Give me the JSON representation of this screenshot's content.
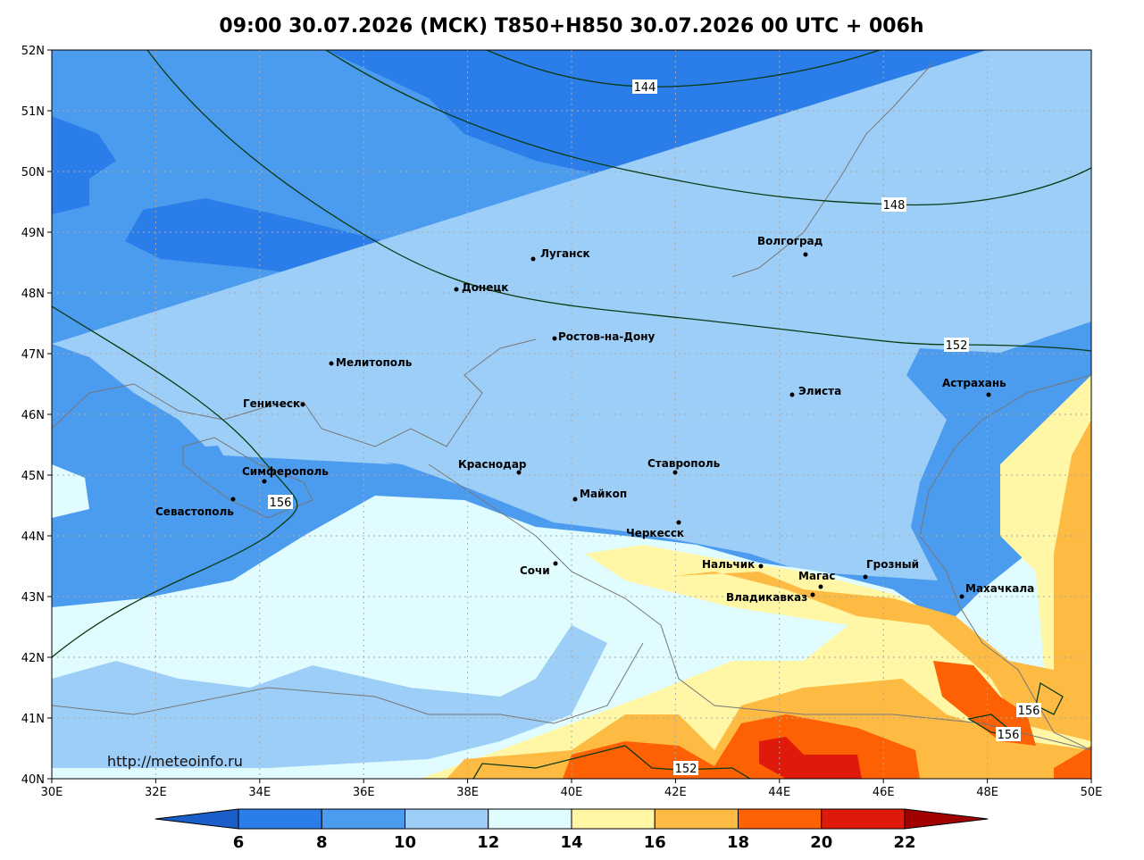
{
  "map": {
    "title": "09:00 30.07.2026 (МСК) T850+H850 30.07.2026 00 UTC + 006h",
    "lon_ticks": [
      {
        "value": 30,
        "label": "30E"
      },
      {
        "value": 32,
        "label": "32E"
      },
      {
        "value": 34,
        "label": "34E"
      },
      {
        "value": 36,
        "label": "36E"
      },
      {
        "value": 38,
        "label": "38E"
      },
      {
        "value": 40,
        "label": "40E"
      },
      {
        "value": 42,
        "label": "42E"
      },
      {
        "value": 44,
        "label": "44E"
      },
      {
        "value": 46,
        "label": "46E"
      },
      {
        "value": 48,
        "label": "48E"
      },
      {
        "value": 50,
        "label": "50E"
      }
    ],
    "lat_ticks": [
      {
        "value": 40,
        "label": "40N"
      },
      {
        "value": 41,
        "label": "41N"
      },
      {
        "value": 42,
        "label": "42N"
      },
      {
        "value": 43,
        "label": "43N"
      },
      {
        "value": 44,
        "label": "44N"
      },
      {
        "value": 45,
        "label": "45N"
      },
      {
        "value": 46,
        "label": "46N"
      },
      {
        "value": 47,
        "label": "47N"
      },
      {
        "value": 48,
        "label": "48N"
      },
      {
        "value": 49,
        "label": "49N"
      },
      {
        "value": 50,
        "label": "50N"
      },
      {
        "value": 51,
        "label": "51N"
      },
      {
        "value": 52,
        "label": "52N"
      }
    ],
    "cities": [
      "Луганск",
      "Донецк",
      "Волгоград",
      "Ростов-на-Дону",
      "Мелитополь",
      "Геническ",
      "Элиста",
      "Астрахань",
      "Симферополь",
      "Севастополь",
      "Краснодар",
      "Ставрополь",
      "Майкоп",
      "Черкесск",
      "Сочи",
      "Нальчик",
      "Магас",
      "Грозный",
      "Владикавказ",
      "Махачкала"
    ],
    "contour_labels": [
      144,
      148,
      152,
      152,
      156,
      156,
      156
    ],
    "colorbar": {
      "levels": [
        6,
        8,
        10,
        12,
        14,
        16,
        18,
        20,
        22
      ],
      "colors": [
        "#1a5fc9",
        "#2b7de9",
        "#4b9bef",
        "#9dcef7",
        "#e0fcff",
        "#fff6a6",
        "#fdbb44",
        "#fd6104",
        "#e01a0a",
        "#a00000"
      ]
    },
    "url": "http://meteoinfo.ru"
  }
}
